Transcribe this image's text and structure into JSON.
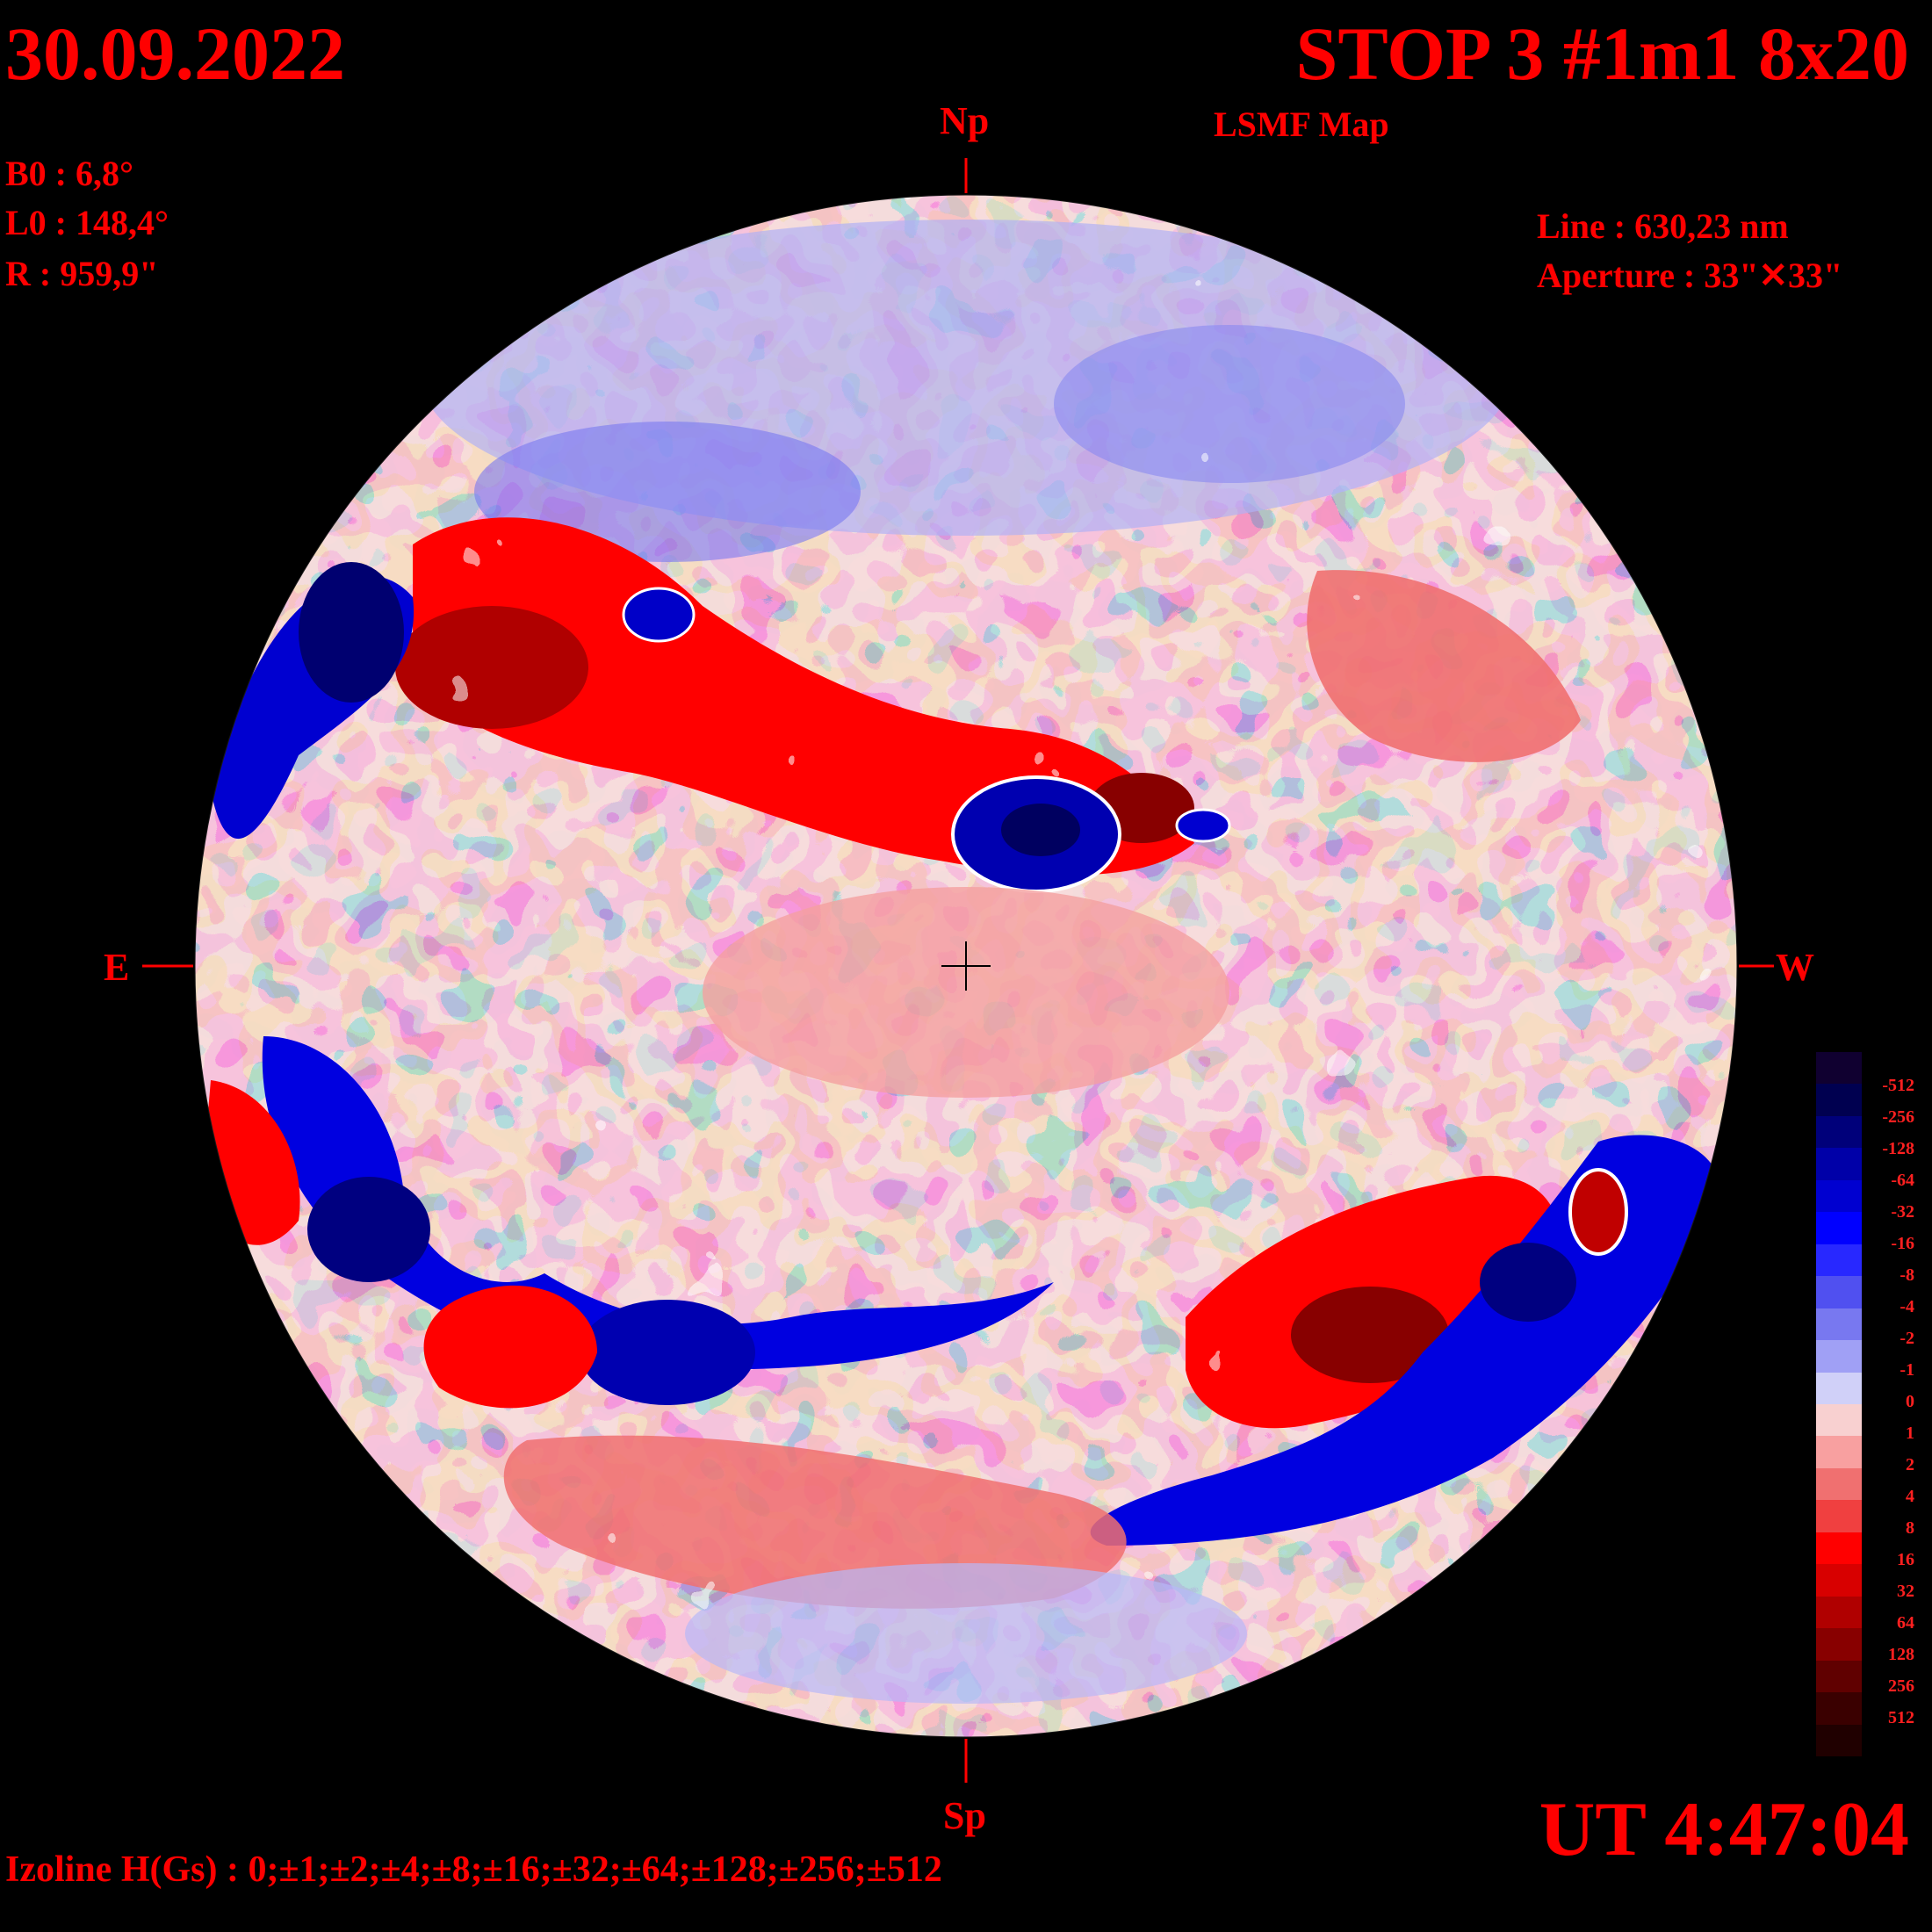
{
  "header": {
    "date": "30.09.2022",
    "title": "STOP 3 #1m1 8x20",
    "subtitle": "LSMF  Map"
  },
  "params": {
    "b0": "B0 : 6,8°",
    "l0": "L0 : 148,4°",
    "radius": "R  : 959,9\""
  },
  "instrument": {
    "line": "Line :  630,23 nm",
    "aperture": "Aperture : 33\"✕33\""
  },
  "compass": {
    "north": "Np",
    "south": "Sp",
    "east": "E",
    "west": "W"
  },
  "footer": {
    "time": "UT 4:47:04",
    "izoline": "Izoline H(Gs) : 0;±1;±2;±4;±8;±16;±32;±64;±128;±256;±512"
  },
  "colorbar": {
    "labels": [
      "-512",
      "-256",
      "-128",
      "-64",
      "-32",
      "-16",
      "-8",
      "-4",
      "-2",
      "-1",
      "0",
      "1",
      "2",
      "4",
      "8",
      "16",
      "32",
      "64",
      "128",
      "256",
      "512"
    ],
    "colors": [
      "#100030",
      "#000050",
      "#00007a",
      "#0000a8",
      "#0000d0",
      "#0000ff",
      "#2828ff",
      "#5050f0",
      "#7878f0",
      "#a0a0f5",
      "#d0d0f8",
      "#f8d0d0",
      "#f8a0a0",
      "#f07070",
      "#f04040",
      "#ff0000",
      "#d80000",
      "#b00000",
      "#880000",
      "#600000",
      "#3a0000",
      "#200000"
    ]
  },
  "colors": {
    "text": "#ff0000",
    "background": "#000000",
    "positive_field": "#ff0000",
    "negative_field": "#0000ff",
    "zero_contour": "#ffffff"
  }
}
